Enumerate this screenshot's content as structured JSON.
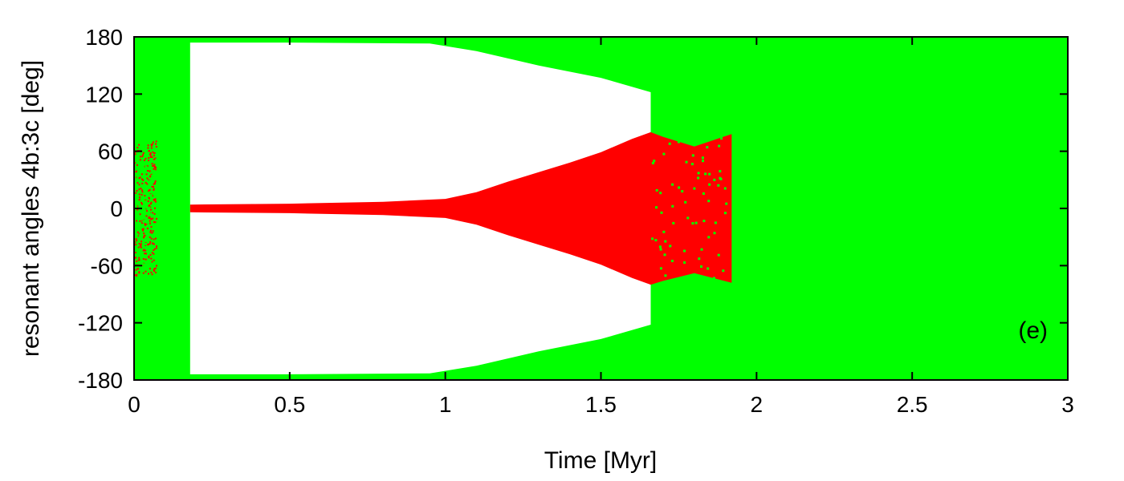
{
  "chart_data": {
    "type": "scatter",
    "title": "",
    "xlabel": "Time [Myr]",
    "ylabel": "resonant angles 4b:3c [deg]",
    "xlim": [
      0,
      3
    ],
    "ylim": [
      -180,
      180
    ],
    "x_ticks": [
      {
        "value": 0,
        "label": "0"
      },
      {
        "value": 0.5,
        "label": "0.5"
      },
      {
        "value": 1,
        "label": "1"
      },
      {
        "value": 1.5,
        "label": "1.5"
      },
      {
        "value": 2,
        "label": "2"
      },
      {
        "value": 2.5,
        "label": "2.5"
      },
      {
        "value": 3,
        "label": "3"
      }
    ],
    "y_ticks": [
      {
        "value": 180,
        "label": "180"
      },
      {
        "value": 120,
        "label": "120"
      },
      {
        "value": 60,
        "label": "60"
      },
      {
        "value": 0,
        "label": "0"
      },
      {
        "value": -60,
        "label": "-60"
      },
      {
        "value": -120,
        "label": "-120"
      },
      {
        "value": -180,
        "label": "-180"
      }
    ],
    "panel_label": "(e)",
    "grid": false,
    "series": [
      {
        "color": "#00ff00",
        "description_bands": {
          "full_circulation_intervals": [
            [
              0,
              0.18
            ],
            [
              1.66,
              3
            ]
          ],
          "outer_envelope_upper": [
            [
              0.18,
              174
            ],
            [
              0.5,
              174
            ],
            [
              0.95,
              173
            ],
            [
              1.1,
              165
            ],
            [
              1.3,
              150
            ],
            [
              1.5,
              137
            ],
            [
              1.66,
              122
            ]
          ],
          "outer_envelope_lower": [
            [
              0.18,
              -174
            ],
            [
              0.5,
              -174
            ],
            [
              0.95,
              -173
            ],
            [
              1.1,
              -165
            ],
            [
              1.3,
              -150
            ],
            [
              1.5,
              -137
            ],
            [
              1.66,
              -122
            ]
          ]
        }
      },
      {
        "color": "#ff0000",
        "amplitude_upper": [
          [
            0.18,
            4
          ],
          [
            0.5,
            5
          ],
          [
            0.8,
            7
          ],
          [
            1.0,
            10
          ],
          [
            1.1,
            17
          ],
          [
            1.2,
            28
          ],
          [
            1.3,
            38
          ],
          [
            1.4,
            48
          ],
          [
            1.5,
            59
          ],
          [
            1.6,
            73
          ],
          [
            1.66,
            80
          ],
          [
            1.7,
            75
          ],
          [
            1.8,
            65
          ],
          [
            1.92,
            78
          ]
        ],
        "amplitude_lower": [
          [
            0.18,
            -4
          ],
          [
            0.5,
            -5
          ],
          [
            0.8,
            -7
          ],
          [
            1.0,
            -10
          ],
          [
            1.1,
            -17
          ],
          [
            1.2,
            -28
          ],
          [
            1.3,
            -38
          ],
          [
            1.4,
            -48
          ],
          [
            1.5,
            -59
          ],
          [
            1.6,
            -73
          ],
          [
            1.66,
            -80
          ],
          [
            1.7,
            -76
          ],
          [
            1.8,
            -68
          ],
          [
            1.92,
            -78
          ]
        ],
        "early_scatter_range": [
          [
            0.0,
            0.07
          ],
          [
            -70,
            72
          ]
        ]
      }
    ]
  }
}
